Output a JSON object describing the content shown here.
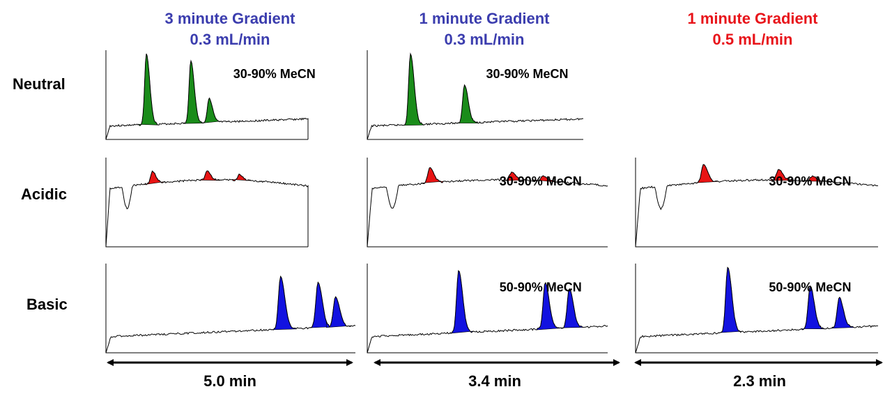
{
  "colors": {
    "blue_title": "#3b3dae",
    "red_title": "#e8141a",
    "neutral_peak": "#1a8c1a",
    "acidic_peak": "#e81414",
    "basic_peak": "#1212e0"
  },
  "columns": [
    {
      "title_line1": "3 minute Gradient",
      "title_line2": "0.3 mL/min",
      "title_color": "#3b3dae",
      "duration": "5.0 min"
    },
    {
      "title_line1": "1 minute Gradient",
      "title_line2": "0.3 mL/min",
      "title_color": "#3b3dae",
      "duration": "3.4 min"
    },
    {
      "title_line1": "1 minute Gradient",
      "title_line2": "0.5 mL/min",
      "title_color": "#e8141a",
      "duration": "2.3 min"
    }
  ],
  "rows": [
    {
      "label": "Neutral",
      "peak_color": "#1a8c1a"
    },
    {
      "label": "Acidic",
      "peak_color": "#e81414"
    },
    {
      "label": "Basic",
      "peak_color": "#1212e0"
    }
  ],
  "chart_data": {
    "type": "line",
    "panels": [
      {
        "row": "Neutral",
        "column": 0,
        "condition": "30-90% MeCN",
        "peaks_x": [
          0.2,
          0.42,
          0.51
        ],
        "peak_heights": [
          1.0,
          0.9,
          0.35
        ]
      },
      {
        "row": "Neutral",
        "column": 1,
        "condition": "30-90% MeCN",
        "peaks_x": [
          0.2,
          0.45
        ],
        "peak_heights": [
          1.0,
          0.55
        ]
      },
      {
        "row": "Acidic",
        "column": 0,
        "condition": "",
        "peaks_x": [
          0.23,
          0.5,
          0.66
        ],
        "peak_heights": [
          0.55,
          0.5,
          0.3
        ]
      },
      {
        "row": "Acidic",
        "column": 1,
        "condition": "30-90% MeCN",
        "peaks_x": [
          0.26,
          0.6,
          0.73
        ],
        "peak_heights": [
          0.7,
          0.4,
          0.25
        ]
      },
      {
        "row": "Acidic",
        "column": 2,
        "condition": "30-90% MeCN",
        "peaks_x": [
          0.28,
          0.59,
          0.73
        ],
        "peak_heights": [
          0.85,
          0.55,
          0.25
        ]
      },
      {
        "row": "Basic",
        "column": 0,
        "condition": "",
        "peaks_x": [
          0.7,
          0.85,
          0.92
        ],
        "peak_heights": [
          0.85,
          0.75,
          0.5
        ]
      },
      {
        "row": "Basic",
        "column": 1,
        "condition": "50-90% MeCN",
        "peaks_x": [
          0.38,
          0.74,
          0.84
        ],
        "peak_heights": [
          0.95,
          0.75,
          0.65
        ]
      },
      {
        "row": "Basic",
        "column": 2,
        "condition": "50-90% MeCN",
        "peaks_x": [
          0.38,
          0.72,
          0.84
        ],
        "peak_heights": [
          1.0,
          0.7,
          0.5
        ]
      }
    ]
  }
}
